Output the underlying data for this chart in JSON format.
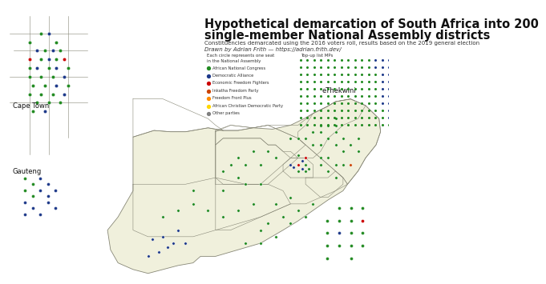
{
  "title_line1": "Hypothetical demarcation of South Africa into 200",
  "title_line2": "single-member National Assembly districts",
  "subtitle1": "Constituencies demarcated using the 2016 voters roll, results based on the 2019 general election",
  "subtitle2": "Drawn by Adrian Frith — https://adrian.frith.dev/",
  "legend_header": "Each circle represents one seat\nin the National Assembly",
  "legend_items": [
    {
      "label": "African National Congress",
      "color": "#228B22"
    },
    {
      "label": "Democratic Alliance",
      "color": "#1E3A8A"
    },
    {
      "label": "Economic Freedom Fighters",
      "color": "#CC0000"
    },
    {
      "label": "Inkatha Freedom Party",
      "color": "#CC4400"
    },
    {
      "label": "Freedom Front Plus",
      "color": "#FF8C00"
    },
    {
      "label": "African Christian Democratic Party",
      "color": "#FFD700"
    },
    {
      "label": "Other parties",
      "color": "#808080"
    }
  ],
  "item_colors": [
    "#228B22",
    "#1E3A8A",
    "#CC0000",
    "#CC4400",
    "#FF8C00",
    "#FFD700",
    "#808080"
  ],
  "dot_grid_rows": 10,
  "dot_grid_cols": 20,
  "background_color": "#ffffff",
  "map_fill": "#f0f0dc",
  "map_edge": "#888877",
  "inset_fill": "#f0f0dc",
  "inset_edge": "#333333",
  "title_fontsize": 10.5,
  "subtitle_fontsize": 5.0,
  "legend_fontsize": 4.2,
  "grid_label_fontsize": 4.2
}
